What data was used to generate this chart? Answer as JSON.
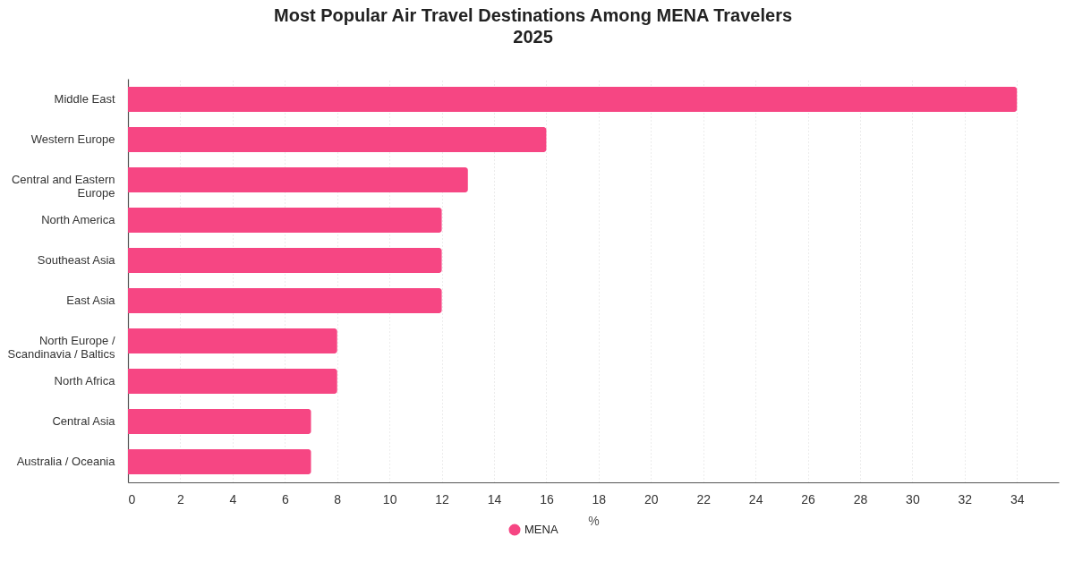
{
  "chart_data": {
    "type": "bar",
    "orientation": "horizontal",
    "title": "Most Popular Air Travel Destinations Among MENA Travelers 2025",
    "xlabel": "%",
    "categories": [
      "Middle East",
      "Western Europe",
      "Central and Eastern Europe",
      "North America",
      "Southeast Asia",
      "East Asia",
      "North Europe / Scandinavia / Baltics",
      "North Africa",
      "Central Asia",
      "Australia / Oceania"
    ],
    "series": [
      {
        "name": "MENA",
        "color": "#f64683",
        "values": [
          34,
          16,
          13,
          12,
          12,
          12,
          8,
          8,
          7,
          7
        ]
      }
    ],
    "xlim": [
      0,
      35.6
    ],
    "xticks": [
      0,
      2,
      4,
      6,
      8,
      10,
      12,
      14,
      16,
      18,
      20,
      22,
      24,
      26,
      28,
      30,
      32,
      34
    ],
    "grid": "x",
    "legend": "bottom"
  }
}
